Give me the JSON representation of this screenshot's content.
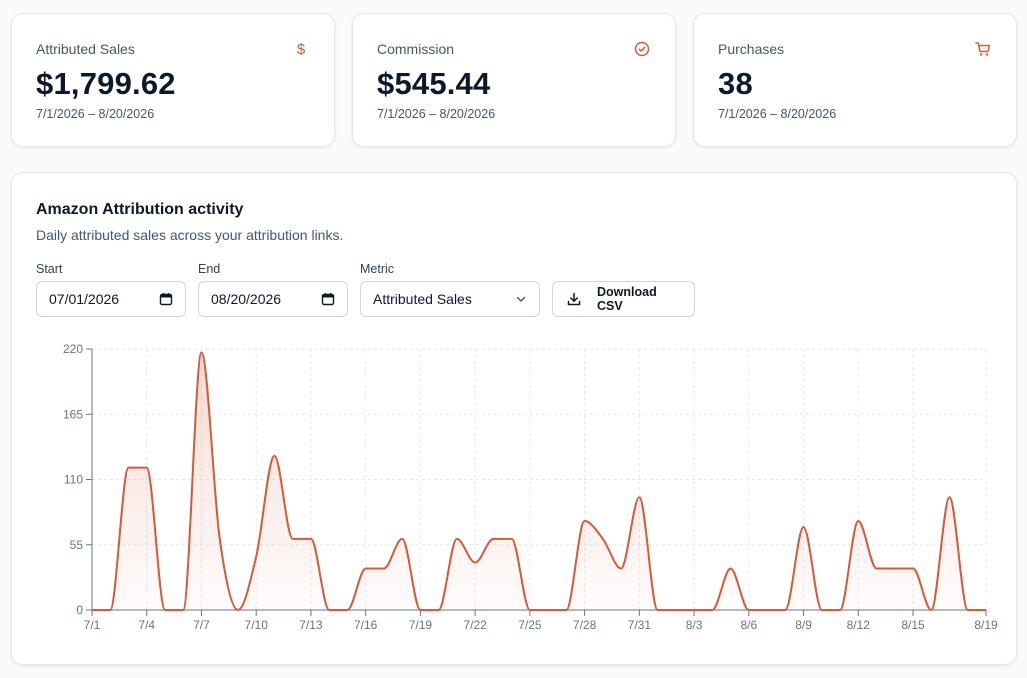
{
  "stats": [
    {
      "label": "Attributed Sales",
      "value": "$1,799.62",
      "range": "7/1/2026 – 8/20/2026",
      "icon": "dollar-icon"
    },
    {
      "label": "Commission",
      "value": "$545.44",
      "range": "7/1/2026 – 8/20/2026",
      "icon": "check-circle-icon"
    },
    {
      "label": "Purchases",
      "value": "38",
      "range": "7/1/2026 – 8/20/2026",
      "icon": "cart-icon"
    }
  ],
  "activity": {
    "title": "Amazon Attribution activity",
    "subtitle": "Daily attributed sales across your attribution links.",
    "start_label": "Start",
    "start_value": "07/01/2026",
    "end_label": "End",
    "end_value": "08/20/2026",
    "metric_label": "Metric",
    "metric_value": "Attributed Sales",
    "download_label": "Download CSV"
  },
  "colors": {
    "accent": "#d35a3a",
    "muted_text": "#475569",
    "border": "#e5e7eb"
  },
  "chart_data": {
    "type": "area",
    "title": "",
    "xlabel": "",
    "ylabel": "",
    "ylim": [
      0,
      220
    ],
    "yticks": [
      0,
      55,
      110,
      165,
      220
    ],
    "xtick_labels": [
      "7/1",
      "7/4",
      "7/7",
      "7/10",
      "7/13",
      "7/16",
      "7/19",
      "7/22",
      "7/25",
      "7/28",
      "7/31",
      "8/3",
      "8/6",
      "8/9",
      "8/12",
      "8/15",
      "8/19"
    ],
    "grid": true,
    "x": [
      "7/1",
      "7/2",
      "7/3",
      "7/4",
      "7/5",
      "7/6",
      "7/7",
      "7/8",
      "7/9",
      "7/10",
      "7/11",
      "7/12",
      "7/13",
      "7/14",
      "7/15",
      "7/16",
      "7/17",
      "7/18",
      "7/19",
      "7/20",
      "7/21",
      "7/22",
      "7/23",
      "7/24",
      "7/25",
      "7/26",
      "7/27",
      "7/28",
      "7/29",
      "7/30",
      "7/31",
      "8/1",
      "8/2",
      "8/3",
      "8/4",
      "8/5",
      "8/6",
      "8/7",
      "8/8",
      "8/9",
      "8/10",
      "8/11",
      "8/12",
      "8/13",
      "8/14",
      "8/15",
      "8/16",
      "8/17",
      "8/18",
      "8/19"
    ],
    "series": [
      {
        "values": [
          0,
          0,
          120,
          120,
          0,
          0,
          217,
          60,
          0,
          45,
          130,
          60,
          60,
          0,
          0,
          35,
          35,
          60,
          0,
          0,
          60,
          40,
          60,
          60,
          0,
          0,
          0,
          75,
          60,
          35,
          95,
          0,
          0,
          0,
          0,
          35,
          0,
          0,
          0,
          70,
          0,
          0,
          75,
          35,
          35,
          35,
          0,
          95,
          0,
          0
        ]
      }
    ]
  }
}
